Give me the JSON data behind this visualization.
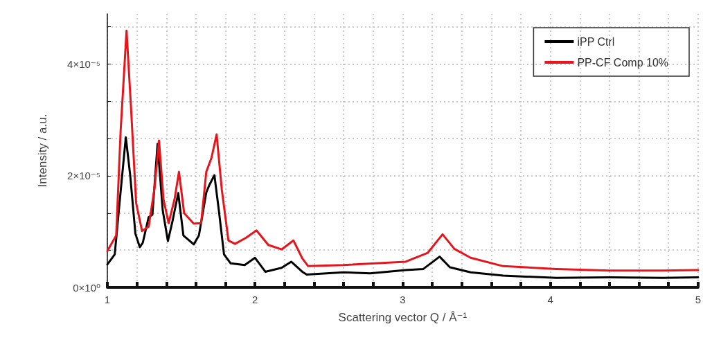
{
  "chart_data": {
    "type": "line",
    "xlabel": "Scattering vector Q / Å⁻¹",
    "ylabel": "Intensity / a.u.",
    "xlim": [
      1,
      5
    ],
    "ylim": [
      0,
      4.9e-05
    ],
    "xticks": [
      1,
      {
        "value": 1.2,
        "label": null
      },
      {
        "value": 1.4,
        "label": null
      },
      {
        "value": 1.6,
        "label": null
      },
      {
        "value": 1.8,
        "label": null
      },
      2,
      {
        "value": 2.2,
        "label": null
      },
      {
        "value": 2.4,
        "label": null
      },
      {
        "value": 2.6,
        "label": null
      },
      {
        "value": 2.8,
        "label": null
      },
      3,
      {
        "value": 3.2,
        "label": null
      },
      {
        "value": 3.4,
        "label": null
      },
      {
        "value": 3.6,
        "label": null
      },
      {
        "value": 3.8,
        "label": null
      },
      4,
      {
        "value": 4.2,
        "label": null
      },
      {
        "value": 4.4,
        "label": null
      },
      {
        "value": 4.6,
        "label": null
      },
      {
        "value": 4.8,
        "label": null
      },
      5
    ],
    "yticks": [
      {
        "value": 0,
        "label": "0×10⁰"
      },
      {
        "value": 6.7e-06,
        "label": null
      },
      {
        "value": 1.33e-05,
        "label": null
      },
      {
        "value": 2e-05,
        "label": "2×10⁻⁵"
      },
      {
        "value": 2.67e-05,
        "label": null
      },
      {
        "value": 3.33e-05,
        "label": null
      },
      {
        "value": 4e-05,
        "label": "4×10⁻⁵"
      },
      {
        "value": 4.67e-05,
        "label": null
      }
    ],
    "grid": true,
    "legend": "top right",
    "line_style": "solid",
    "marker": "none",
    "series": [
      {
        "name": "iPP Ctrl",
        "color": "#000000",
        "x": [
          1.0,
          1.05,
          1.085,
          1.125,
          1.155,
          1.19,
          1.22,
          1.24,
          1.28,
          1.305,
          1.34,
          1.375,
          1.41,
          1.44,
          1.48,
          1.515,
          1.585,
          1.62,
          1.67,
          1.69,
          1.725,
          1.755,
          1.79,
          1.835,
          1.93,
          2.0,
          2.07,
          2.18,
          2.245,
          2.32,
          2.35,
          2.6,
          2.78,
          3.02,
          3.14,
          3.25,
          3.32,
          3.46,
          3.68,
          4.04,
          4.4,
          4.76,
          5.0
        ],
        "values": [
          4.1e-06,
          5.9e-06,
          1.58e-05,
          2.69e-05,
          2e-05,
          9.6e-06,
          7.2e-06,
          8e-06,
          1.26e-05,
          1.3e-05,
          2.57e-05,
          1.38e-05,
          8.3e-06,
          1.17e-05,
          1.69e-05,
          9.3e-06,
          7.7e-06,
          9.3e-06,
          1.7e-05,
          1.83e-05,
          2.01e-05,
          1.38e-05,
          5.9e-06,
          4.3e-06,
          4e-06,
          5.3e-06,
          2.8e-06,
          3.5e-06,
          4.6e-06,
          2.8e-06,
          2.3e-06,
          2.7e-06,
          2.5e-06,
          3.1e-06,
          3.3e-06,
          5.5e-06,
          3.6e-06,
          2.7e-06,
          2.1e-06,
          1.7e-06,
          1.8e-06,
          1.7e-06,
          1.8e-06
        ]
      },
      {
        "name": "PP-CF Comp 10%",
        "color": "#e8141c",
        "x": [
          1.0,
          1.06,
          1.09,
          1.13,
          1.16,
          1.195,
          1.235,
          1.28,
          1.32,
          1.35,
          1.38,
          1.415,
          1.455,
          1.485,
          1.52,
          1.585,
          1.635,
          1.67,
          1.705,
          1.74,
          1.775,
          1.82,
          1.865,
          1.94,
          2.01,
          2.09,
          2.18,
          2.26,
          2.32,
          2.36,
          2.6,
          3.02,
          3.17,
          3.27,
          3.35,
          3.46,
          3.68,
          4.04,
          4.4,
          4.76,
          5.0
        ],
        "values": [
          6.5e-06,
          9.3e-06,
          2.81e-05,
          4.6e-05,
          3.23e-05,
          1.51e-05,
          1.01e-05,
          1.09e-05,
          1.79e-05,
          2.63e-05,
          1.58e-05,
          1.15e-05,
          1.58e-05,
          2.07e-05,
          1.33e-05,
          1.14e-05,
          1.15e-05,
          2.07e-05,
          2.32e-05,
          2.74e-05,
          1.75e-05,
          8.4e-06,
          7.8e-06,
          8.9e-06,
          1.02e-05,
          7.6e-06,
          6.8e-06,
          8.4e-06,
          5.2e-06,
          3.8e-06,
          4e-06,
          4.6e-06,
          6.2e-06,
          9.5e-06,
          6.9e-06,
          5.3e-06,
          3.8e-06,
          3.3e-06,
          3e-06,
          3e-06,
          3.1e-06
        ]
      }
    ]
  }
}
